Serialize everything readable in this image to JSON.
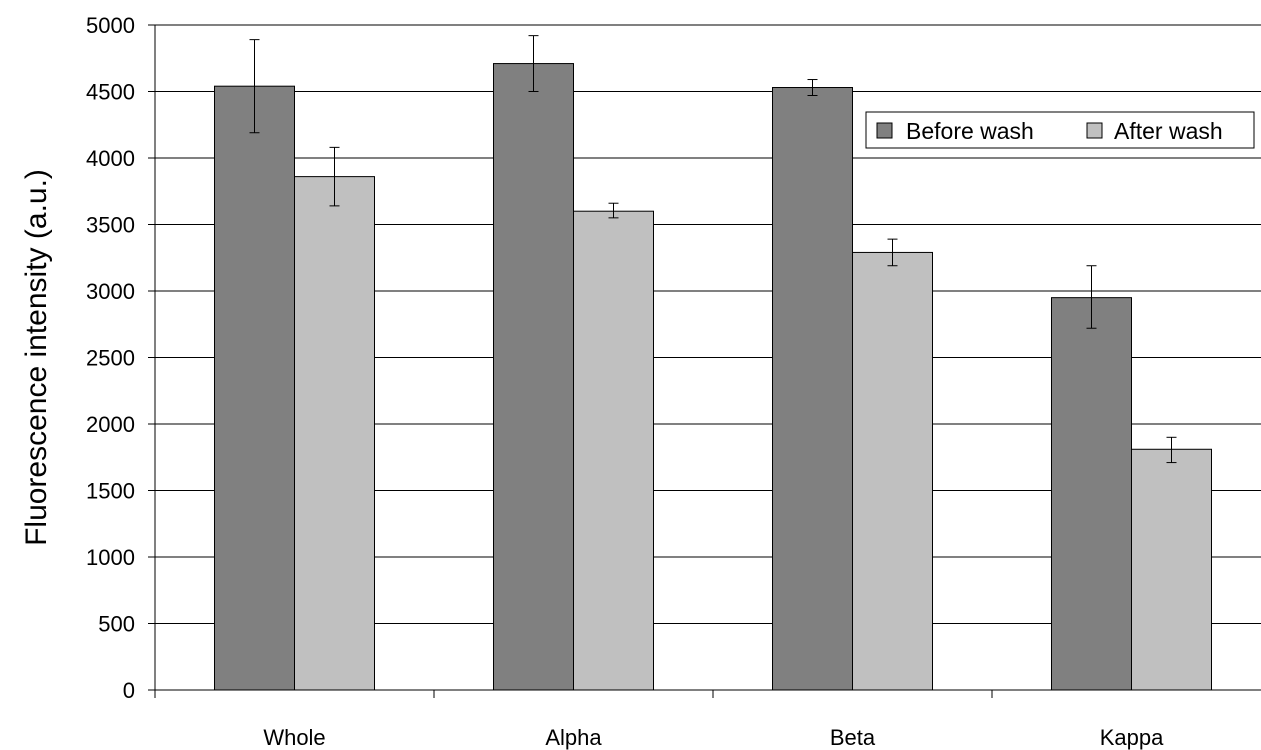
{
  "chart_data": {
    "type": "bar",
    "categories": [
      "Whole",
      "Alpha",
      "Beta",
      "Kappa"
    ],
    "series": [
      {
        "name": "Before wash",
        "color": "#808080",
        "values": [
          4540,
          4710,
          4530,
          2950
        ],
        "error_low": [
          4190,
          4500,
          4470,
          2720
        ],
        "error_high": [
          4890,
          4920,
          4590,
          3190
        ]
      },
      {
        "name": "After wash",
        "color": "#c0c0c0",
        "values": [
          3860,
          3600,
          3290,
          1810
        ],
        "error_low": [
          3640,
          3550,
          3190,
          1710
        ],
        "error_high": [
          4080,
          3660,
          3390,
          1900
        ]
      }
    ],
    "ylabel": "Fluorescence intensity (a.u.)",
    "xlabel": "",
    "ylim": [
      0,
      5000
    ],
    "yticks": [
      "0",
      "500",
      "1000",
      "1500",
      "2000",
      "2500",
      "3000",
      "3500",
      "4000",
      "4500",
      "5000"
    ],
    "grid": "horizontal",
    "legend_position": "top-right"
  }
}
